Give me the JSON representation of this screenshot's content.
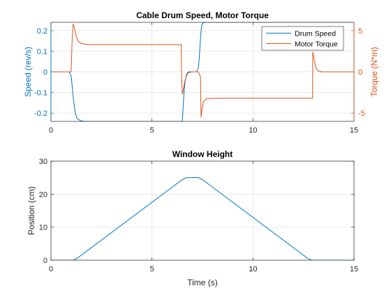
{
  "colors": {
    "series1": "#0072BD",
    "series2": "#D95319",
    "axis": "#262626",
    "grid": "#dfdfdf",
    "background": "#ffffff"
  },
  "chart_data": [
    {
      "type": "line",
      "title": "Cable Drum Speed, Motor Torque",
      "xlabel": "",
      "ylabel": "Speed (rev/s)",
      "ylabel_right": "Torque (N*m)",
      "xlim": [
        0,
        15
      ],
      "ylim": [
        -0.24,
        0.24
      ],
      "ylim_right": [
        -6,
        6
      ],
      "xticks": [
        "0",
        "5",
        "10",
        "15"
      ],
      "yticks": [
        "-0.2",
        "-0.1",
        "0",
        "0.1",
        "0.2"
      ],
      "yticks_right": [
        "-5",
        "0",
        "5"
      ],
      "grid": true,
      "legend": "top-right",
      "series": [
        {
          "name": "Drum Speed",
          "axis": "left",
          "x": [
            0,
            0.9,
            1.0,
            1.1,
            1.2,
            1.3,
            1.5,
            1.7,
            2.0,
            6.5,
            6.55,
            6.6,
            6.65,
            6.7,
            6.8,
            7.2,
            7.3,
            7.35,
            7.4,
            7.45,
            7.5,
            7.6,
            7.8,
            15
          ],
          "y": [
            0,
            0,
            -0.02,
            -0.12,
            -0.2,
            -0.228,
            -0.238,
            -0.24,
            -0.24,
            -0.24,
            -0.16,
            -0.08,
            -0.04,
            -0.015,
            0,
            0,
            0.02,
            0.08,
            0.16,
            0.22,
            0.235,
            0.24,
            0.24,
            0.24
          ]
        },
        {
          "name": "Motor Torque",
          "axis": "right",
          "x": [
            0,
            1.0,
            1.05,
            1.1,
            1.15,
            1.25,
            1.35,
            1.5,
            1.7,
            2.0,
            6.45,
            6.46,
            6.5,
            6.55,
            6.62,
            6.7,
            6.8,
            7.0,
            7.3,
            7.4,
            7.43,
            7.47,
            7.55,
            7.7,
            8.0,
            12.95,
            12.96,
            13.0,
            13.05,
            13.12,
            13.2,
            13.4,
            13.7,
            15
          ],
          "y": [
            0,
            0,
            4.0,
            5.8,
            5.4,
            4.3,
            3.7,
            3.45,
            3.35,
            3.3,
            3.3,
            0.2,
            -2.7,
            -2.2,
            -1.2,
            -0.5,
            -0.1,
            0,
            0,
            -0.6,
            -5.5,
            -4.6,
            -3.6,
            -3.25,
            -3.2,
            -3.2,
            2.4,
            1.9,
            1.2,
            0.5,
            0.15,
            0,
            0,
            0
          ]
        }
      ]
    },
    {
      "type": "line",
      "title": "Window Height",
      "xlabel": "Time (s)",
      "ylabel": "Position (cm)",
      "xlim": [
        0,
        15
      ],
      "ylim": [
        0,
        30
      ],
      "xticks": [
        "0",
        "5",
        "10",
        "15"
      ],
      "yticks": [
        "0",
        "10",
        "20",
        "30"
      ],
      "grid": true,
      "series": [
        {
          "axis": "left",
          "x": [
            0,
            1.1,
            1.3,
            6.5,
            6.7,
            7.3,
            7.5,
            12.7,
            12.9,
            15
          ],
          "y": [
            0,
            0,
            0.6,
            24.4,
            25,
            25,
            24.4,
            0.6,
            0,
            0
          ]
        }
      ]
    }
  ]
}
